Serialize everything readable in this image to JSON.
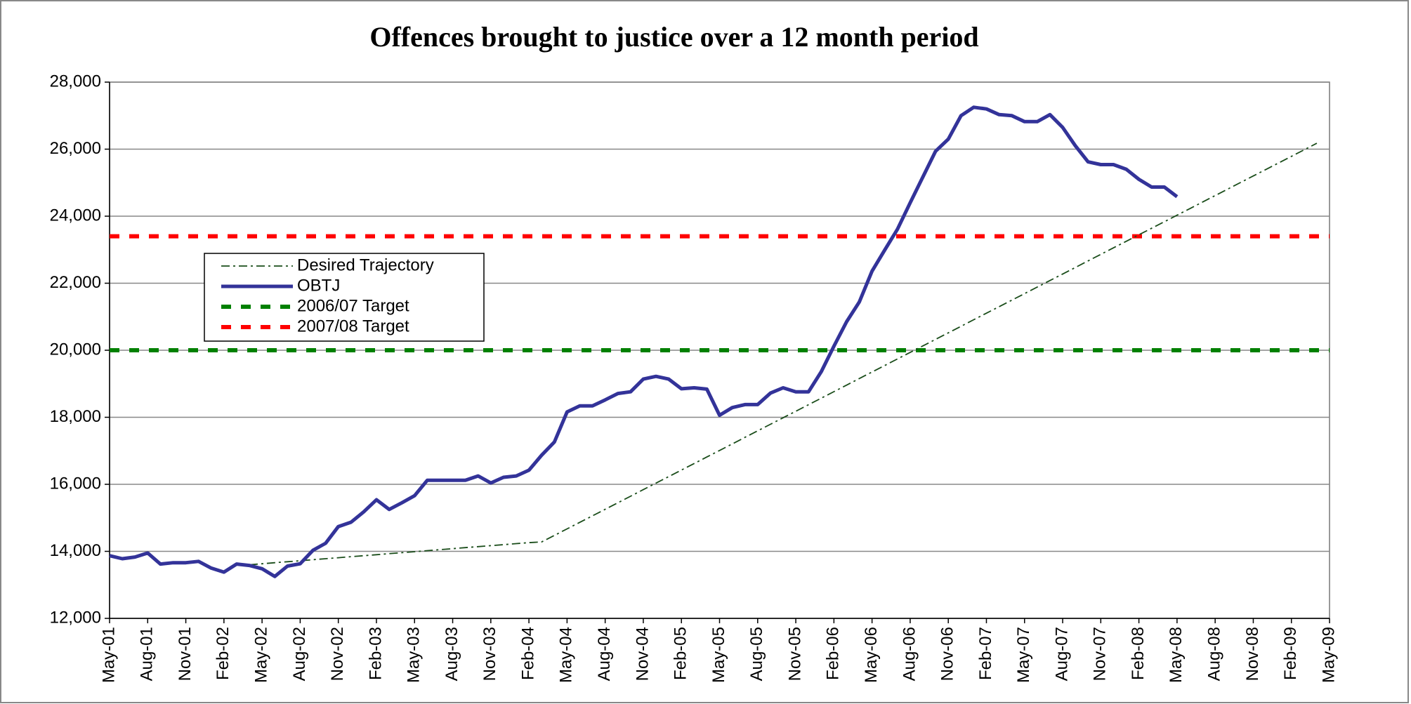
{
  "chart_data": {
    "type": "line",
    "title": "Offences brought to justice over a 12 month period",
    "categories": [
      "May-01",
      null,
      null,
      "Aug-01",
      null,
      null,
      "Nov-01",
      null,
      null,
      "Feb-02",
      null,
      null,
      "May-02",
      null,
      null,
      "Aug-02",
      null,
      null,
      "Nov-02",
      null,
      null,
      "Feb-03",
      null,
      null,
      "May-03",
      null,
      null,
      "Aug-03",
      null,
      null,
      "Nov-03",
      null,
      null,
      "Feb-04",
      null,
      null,
      "May-04",
      null,
      null,
      "Aug-04",
      null,
      null,
      "Nov-04",
      null,
      null,
      "Feb-05",
      null,
      null,
      "May-05",
      null,
      null,
      "Aug-05",
      null,
      null,
      "Nov-05",
      null,
      null,
      "Feb-06",
      null,
      null,
      "May-06",
      null,
      null,
      "Aug-06",
      null,
      null,
      "Nov-06",
      null,
      null,
      "Feb-07",
      null,
      null,
      "May-07",
      null,
      null,
      "Aug-07",
      null,
      null,
      "Nov-07",
      null,
      null,
      "Feb-08",
      null,
      null,
      "May-08",
      null,
      null,
      "Aug-08",
      null,
      null,
      "Nov-08",
      null,
      null,
      "Feb-09",
      null,
      null,
      "May-09"
    ],
    "ylim": [
      12000,
      28000
    ],
    "yticks": [
      {
        "value": 12000,
        "label": "12,000"
      },
      {
        "value": 14000,
        "label": "14,000"
      },
      {
        "value": 16000,
        "label": "16,000"
      },
      {
        "value": 18000,
        "label": "18,000"
      },
      {
        "value": 20000,
        "label": "20,000"
      },
      {
        "value": 22000,
        "label": "22,000"
      },
      {
        "value": 24000,
        "label": "24,000"
      },
      {
        "value": 26000,
        "label": "26,000"
      },
      {
        "value": 28000,
        "label": "28,000"
      }
    ],
    "grid": true,
    "legend": "left",
    "series": [
      {
        "name": "Desired Trajectory",
        "color": "#1a4d1a",
        "style": "dash-dot",
        "values": [
          null,
          null,
          null,
          null,
          null,
          null,
          null,
          null,
          null,
          null,
          null,
          13600,
          13630,
          13660,
          13690,
          13720,
          13750,
          13780,
          13810,
          13840,
          13870,
          13900,
          13930,
          13960,
          13990,
          14020,
          14050,
          14080,
          14110,
          14140,
          14170,
          14200,
          14230,
          14260,
          14280,
          14475,
          14670,
          14865,
          15060,
          15255,
          15450,
          15645,
          15840,
          16035,
          16230,
          16425,
          16620,
          16815,
          17010,
          17205,
          17400,
          17595,
          17790,
          17985,
          18180,
          18375,
          18570,
          18765,
          18960,
          19155,
          19350,
          19545,
          19740,
          19935,
          20130,
          20325,
          20520,
          20715,
          20910,
          21105,
          21300,
          21495,
          21690,
          21885,
          22080,
          22275,
          22470,
          22665,
          22860,
          23055,
          23250,
          23445,
          23640,
          23835,
          24030,
          24225,
          24420,
          24615,
          24810,
          25005,
          25200,
          25395,
          25590,
          25785,
          25980,
          26175,
          null
        ]
      },
      {
        "name": "OBTJ",
        "color": "#333399",
        "style": "solid",
        "values": [
          13870,
          13780,
          13830,
          13950,
          13620,
          13660,
          13660,
          13700,
          13500,
          13380,
          13620,
          13580,
          13480,
          13250,
          13560,
          13630,
          14030,
          14240,
          14740,
          14870,
          15180,
          15540,
          15250,
          15450,
          15660,
          16120,
          16120,
          16120,
          16120,
          16250,
          16040,
          16210,
          16250,
          16420,
          16870,
          17260,
          18160,
          18340,
          18340,
          18520,
          18710,
          18760,
          19140,
          19220,
          19140,
          18850,
          18880,
          18840,
          18060,
          18290,
          18380,
          18380,
          18720,
          18880,
          18760,
          18760,
          19360,
          20120,
          20850,
          21440,
          22360,
          22990,
          23610,
          24400,
          25170,
          25940,
          26300,
          27000,
          27250,
          27200,
          27030,
          27000,
          26820,
          26820,
          27030,
          26650,
          26100,
          25620,
          25540,
          25540,
          25400,
          25100,
          24870,
          24870,
          24580,
          null,
          null,
          null,
          null,
          null,
          null,
          null,
          null,
          null,
          null,
          null,
          null
        ]
      },
      {
        "name": "2006/07 Target",
        "color": "#008000",
        "style": "dashed",
        "value": 20000
      },
      {
        "name": "2007/08 Target",
        "color": "#ff0000",
        "style": "dashed",
        "value": 23400
      }
    ]
  }
}
